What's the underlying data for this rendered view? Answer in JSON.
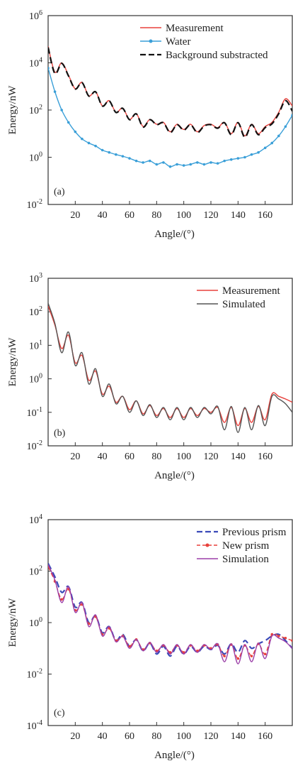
{
  "chart_data": [
    {
      "panel_label": "(a)",
      "type": "line",
      "xlabel": "Angle/(°)",
      "ylabel": "Energy/nW",
      "yscale": "log",
      "xlim": [
        0,
        180
      ],
      "ylim_exp": [
        -2,
        6
      ],
      "xticks": [
        20,
        40,
        60,
        80,
        100,
        120,
        140,
        160
      ],
      "ytick_exps": [
        -2,
        0,
        2,
        4,
        6
      ],
      "legend_position": "top-right",
      "series": [
        {
          "name": "Measurement",
          "color": "#e8413c",
          "style": "solid",
          "x": [
            0,
            5,
            10,
            15,
            20,
            25,
            30,
            35,
            40,
            45,
            50,
            55,
            60,
            65,
            70,
            75,
            80,
            85,
            90,
            95,
            100,
            105,
            110,
            115,
            120,
            125,
            130,
            135,
            140,
            145,
            150,
            155,
            160,
            165,
            170,
            175,
            180
          ],
          "y": [
            50000,
            4000,
            10000,
            3000,
            800,
            1500,
            400,
            600,
            150,
            250,
            80,
            120,
            40,
            70,
            20,
            40,
            25,
            30,
            12,
            25,
            15,
            25,
            12,
            22,
            25,
            18,
            30,
            10,
            30,
            8,
            25,
            10,
            20,
            30,
            80,
            300,
            150
          ]
        },
        {
          "name": "Water",
          "color": "#3a9fd8",
          "style": "dotted-marker",
          "x": [
            0,
            5,
            10,
            15,
            20,
            25,
            30,
            35,
            40,
            45,
            50,
            55,
            60,
            65,
            70,
            75,
            80,
            85,
            90,
            95,
            100,
            105,
            110,
            115,
            120,
            125,
            130,
            135,
            140,
            145,
            150,
            155,
            160,
            165,
            170,
            175,
            180
          ],
          "y": [
            6000,
            600,
            100,
            30,
            12,
            6,
            4,
            3,
            2,
            1.6,
            1.3,
            1.1,
            0.9,
            0.7,
            0.6,
            0.7,
            0.5,
            0.6,
            0.4,
            0.5,
            0.45,
            0.5,
            0.6,
            0.5,
            0.6,
            0.55,
            0.7,
            0.8,
            0.9,
            1.0,
            1.3,
            1.6,
            2.5,
            4,
            8,
            20,
            60
          ]
        },
        {
          "name": "Background substracted",
          "color": "#111111",
          "style": "dashed",
          "x": [
            0,
            5,
            10,
            15,
            20,
            25,
            30,
            35,
            40,
            45,
            50,
            55,
            60,
            65,
            70,
            75,
            80,
            85,
            90,
            95,
            100,
            105,
            110,
            115,
            120,
            125,
            130,
            135,
            140,
            145,
            150,
            155,
            160,
            165,
            170,
            175,
            180
          ],
          "y": [
            45000,
            3500,
            9500,
            2800,
            780,
            1450,
            390,
            590,
            148,
            245,
            79,
            118,
            39,
            69,
            19,
            39,
            24,
            29,
            11,
            24,
            14,
            24,
            11,
            21,
            24,
            17,
            29,
            9,
            29,
            7,
            24,
            9,
            18,
            26,
            70,
            250,
            90
          ]
        }
      ]
    },
    {
      "panel_label": "(b)",
      "type": "line",
      "xlabel": "Angle/(°)",
      "ylabel": "Energy/nW",
      "yscale": "log",
      "xlim": [
        0,
        180
      ],
      "ylim_exp": [
        -2,
        3
      ],
      "xticks": [
        20,
        40,
        60,
        80,
        100,
        120,
        140,
        160
      ],
      "ytick_exps": [
        -2,
        -1,
        0,
        1,
        2,
        3
      ],
      "legend_position": "top-right",
      "series": [
        {
          "name": "Measurement",
          "color": "#e8413c",
          "style": "solid",
          "x": [
            0,
            5,
            10,
            15,
            20,
            25,
            30,
            35,
            40,
            45,
            50,
            55,
            60,
            65,
            70,
            75,
            80,
            85,
            90,
            95,
            100,
            105,
            110,
            115,
            120,
            125,
            130,
            135,
            140,
            145,
            150,
            155,
            160,
            165,
            170,
            175,
            180
          ],
          "y": [
            150,
            40,
            8,
            20,
            3,
            5,
            0.9,
            1.7,
            0.35,
            0.6,
            0.2,
            0.3,
            0.12,
            0.22,
            0.09,
            0.16,
            0.08,
            0.13,
            0.07,
            0.13,
            0.07,
            0.13,
            0.08,
            0.13,
            0.1,
            0.14,
            0.05,
            0.14,
            0.04,
            0.13,
            0.05,
            0.15,
            0.06,
            0.35,
            0.3,
            0.25,
            0.2
          ]
        },
        {
          "name": "Simulated",
          "color": "#555555",
          "style": "solid",
          "x": [
            0,
            5,
            10,
            15,
            20,
            25,
            30,
            35,
            40,
            45,
            50,
            55,
            60,
            65,
            70,
            75,
            80,
            85,
            90,
            95,
            100,
            105,
            110,
            115,
            120,
            125,
            130,
            135,
            140,
            145,
            150,
            155,
            160,
            165,
            170,
            175,
            180
          ],
          "y": [
            180,
            45,
            6,
            25,
            2.5,
            6,
            0.7,
            2,
            0.3,
            0.7,
            0.18,
            0.3,
            0.1,
            0.22,
            0.08,
            0.17,
            0.07,
            0.14,
            0.06,
            0.14,
            0.06,
            0.14,
            0.07,
            0.14,
            0.09,
            0.15,
            0.03,
            0.15,
            0.025,
            0.14,
            0.03,
            0.16,
            0.04,
            0.3,
            0.25,
            0.18,
            0.1
          ]
        }
      ]
    },
    {
      "panel_label": "(c)",
      "type": "line",
      "xlabel": "Angle/(°)",
      "ylabel": "Energy/nW",
      "yscale": "log",
      "xlim": [
        0,
        180
      ],
      "ylim_exp": [
        -4,
        4
      ],
      "xticks": [
        20,
        40,
        60,
        80,
        100,
        120,
        140,
        160
      ],
      "ytick_exps": [
        -4,
        -2,
        0,
        2,
        4
      ],
      "legend_position": "top-right",
      "series": [
        {
          "name": "Previous prism",
          "color": "#3a49b8",
          "style": "dashed",
          "x": [
            0,
            5,
            10,
            15,
            20,
            25,
            30,
            35,
            40,
            45,
            50,
            55,
            60,
            65,
            70,
            75,
            80,
            85,
            90,
            95,
            100,
            105,
            110,
            115,
            120,
            125,
            130,
            135,
            140,
            145,
            150,
            155,
            160,
            165,
            170,
            175,
            180
          ],
          "y": [
            200,
            60,
            15,
            25,
            4,
            6,
            1.0,
            1.8,
            0.4,
            0.7,
            0.2,
            0.35,
            0.12,
            0.22,
            0.08,
            0.16,
            0.06,
            0.12,
            0.05,
            0.12,
            0.06,
            0.12,
            0.07,
            0.12,
            0.09,
            0.13,
            0.06,
            0.15,
            0.07,
            0.2,
            0.1,
            0.15,
            0.2,
            0.3,
            0.35,
            0.2,
            0.1
          ]
        },
        {
          "name": "New prism",
          "color": "#e8413c",
          "style": "dashed-marker",
          "x": [
            0,
            5,
            10,
            15,
            20,
            25,
            30,
            35,
            40,
            45,
            50,
            55,
            60,
            65,
            70,
            75,
            80,
            85,
            90,
            95,
            100,
            105,
            110,
            115,
            120,
            125,
            130,
            135,
            140,
            145,
            150,
            155,
            160,
            165,
            170,
            175,
            180
          ],
          "y": [
            150,
            40,
            8,
            20,
            3,
            5,
            0.9,
            1.7,
            0.35,
            0.6,
            0.2,
            0.3,
            0.12,
            0.22,
            0.09,
            0.16,
            0.08,
            0.13,
            0.07,
            0.13,
            0.07,
            0.13,
            0.08,
            0.13,
            0.1,
            0.14,
            0.05,
            0.14,
            0.04,
            0.13,
            0.05,
            0.15,
            0.06,
            0.35,
            0.3,
            0.25,
            0.2
          ]
        },
        {
          "name": "Simulation",
          "color": "#9b3fa8",
          "style": "solid",
          "x": [
            0,
            5,
            10,
            15,
            20,
            25,
            30,
            35,
            40,
            45,
            50,
            55,
            60,
            65,
            70,
            75,
            80,
            85,
            90,
            95,
            100,
            105,
            110,
            115,
            120,
            125,
            130,
            135,
            140,
            145,
            150,
            155,
            160,
            165,
            170,
            175,
            180
          ],
          "y": [
            180,
            45,
            6,
            25,
            2.5,
            6,
            0.7,
            2,
            0.3,
            0.7,
            0.18,
            0.3,
            0.1,
            0.22,
            0.08,
            0.17,
            0.07,
            0.14,
            0.06,
            0.14,
            0.06,
            0.14,
            0.07,
            0.14,
            0.09,
            0.15,
            0.03,
            0.15,
            0.025,
            0.14,
            0.03,
            0.16,
            0.04,
            0.3,
            0.25,
            0.18,
            0.1
          ]
        }
      ]
    }
  ]
}
